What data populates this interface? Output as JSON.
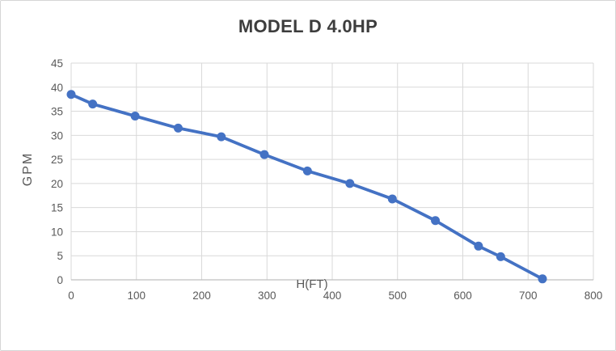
{
  "chart_data": {
    "type": "line",
    "title": "MODEL D 4.0HP",
    "xlabel": "H(FT)",
    "ylabel": "GPM",
    "x": [
      0,
      33,
      98,
      164,
      230,
      296,
      362,
      427,
      492,
      558,
      624,
      658,
      722
    ],
    "y": [
      38.5,
      36.5,
      34,
      31.5,
      29.7,
      26,
      22.6,
      20,
      16.8,
      12.3,
      7,
      4.8,
      0.2
    ],
    "xlim": [
      0,
      800
    ],
    "ylim": [
      0,
      45
    ],
    "x_ticks": [
      0,
      100,
      200,
      300,
      400,
      500,
      600,
      700,
      800
    ],
    "y_ticks": [
      0,
      5,
      10,
      15,
      20,
      25,
      30,
      35,
      40,
      45
    ],
    "grid": "both",
    "legend": "none",
    "marker": "circle",
    "marker_radius": 5.5,
    "line_width": 3.8,
    "colors": {
      "series": "#4472C4",
      "gridline": "#D9D9D9",
      "axis_line": "#BFBFBF",
      "tick_label": "#595959",
      "title": "#3d3d3d",
      "background": "#ffffff",
      "border": "#d6d6d6"
    }
  }
}
